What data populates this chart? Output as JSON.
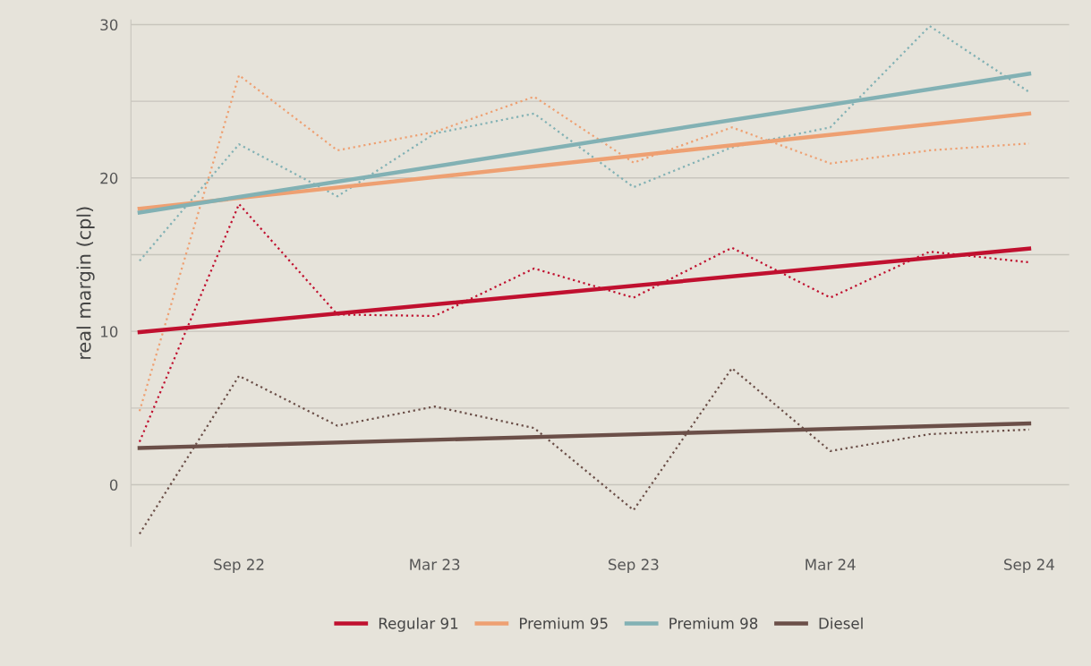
{
  "chart_data": {
    "type": "line",
    "ylabel": "real margin (cpl)",
    "x": [
      "2022-06",
      "2022-09",
      "2022-12",
      "2023-03",
      "2023-06",
      "2023-09",
      "2023-12",
      "2024-03",
      "2024-06",
      "2024-09"
    ],
    "xlim": [
      "2022-05-24",
      "2024-10-08"
    ],
    "xticks": [
      {
        "value": "2022-09",
        "label": "Sep 22"
      },
      {
        "value": "2023-03",
        "label": "Mar 23"
      },
      {
        "value": "2023-09",
        "label": "Sep 23"
      },
      {
        "value": "2024-03",
        "label": "Mar 24"
      },
      {
        "value": "2024-09",
        "label": "Sep 24"
      }
    ],
    "ylim": [
      -4,
      30.3
    ],
    "yticks": [
      0,
      {
        "value": 5,
        "label": null
      },
      10,
      {
        "value": 15,
        "label": null
      },
      20,
      {
        "value": 25,
        "label": null
      },
      30
    ],
    "grid": "y",
    "legend": "bottom",
    "series": [
      {
        "color": "#c0102f",
        "line_style": "dotted",
        "values": [
          2.8,
          18.3,
          11.1,
          11.0,
          14.1,
          12.2,
          15.45,
          12.2,
          15.2,
          14.5
        ]
      },
      {
        "color": "#eea072",
        "line_style": "dotted",
        "values": [
          4.8,
          26.7,
          21.8,
          23.0,
          25.3,
          21.0,
          23.3,
          20.95,
          21.8,
          22.25
        ]
      },
      {
        "color": "#82b1b4",
        "line_style": "dotted",
        "values": [
          14.6,
          22.2,
          18.8,
          22.9,
          24.2,
          19.4,
          22.0,
          23.3,
          29.9,
          25.6
        ]
      },
      {
        "color": "#6b4f48",
        "line_style": "dotted",
        "values": [
          -3.2,
          7.1,
          3.85,
          5.1,
          3.7,
          -1.65,
          7.6,
          2.2,
          3.3,
          3.6
        ]
      },
      {
        "name": "Regular 91",
        "color": "#c0102f",
        "line_style": "solid",
        "x": [
          "2022-06",
          "2024-09"
        ],
        "values": [
          9.95,
          15.4
        ]
      },
      {
        "name": "Premium 95",
        "color": "#eea072",
        "line_style": "solid",
        "x": [
          "2022-06",
          "2024-09"
        ],
        "values": [
          18.0,
          24.2
        ]
      },
      {
        "name": "Premium 98",
        "color": "#82b1b4",
        "line_style": "solid",
        "x": [
          "2022-06",
          "2024-09"
        ],
        "values": [
          17.75,
          26.8
        ]
      },
      {
        "name": "Diesel",
        "color": "#6b4f48",
        "line_style": "solid",
        "x": [
          "2022-06",
          "2024-09"
        ],
        "values": [
          2.4,
          4.0
        ]
      }
    ]
  }
}
